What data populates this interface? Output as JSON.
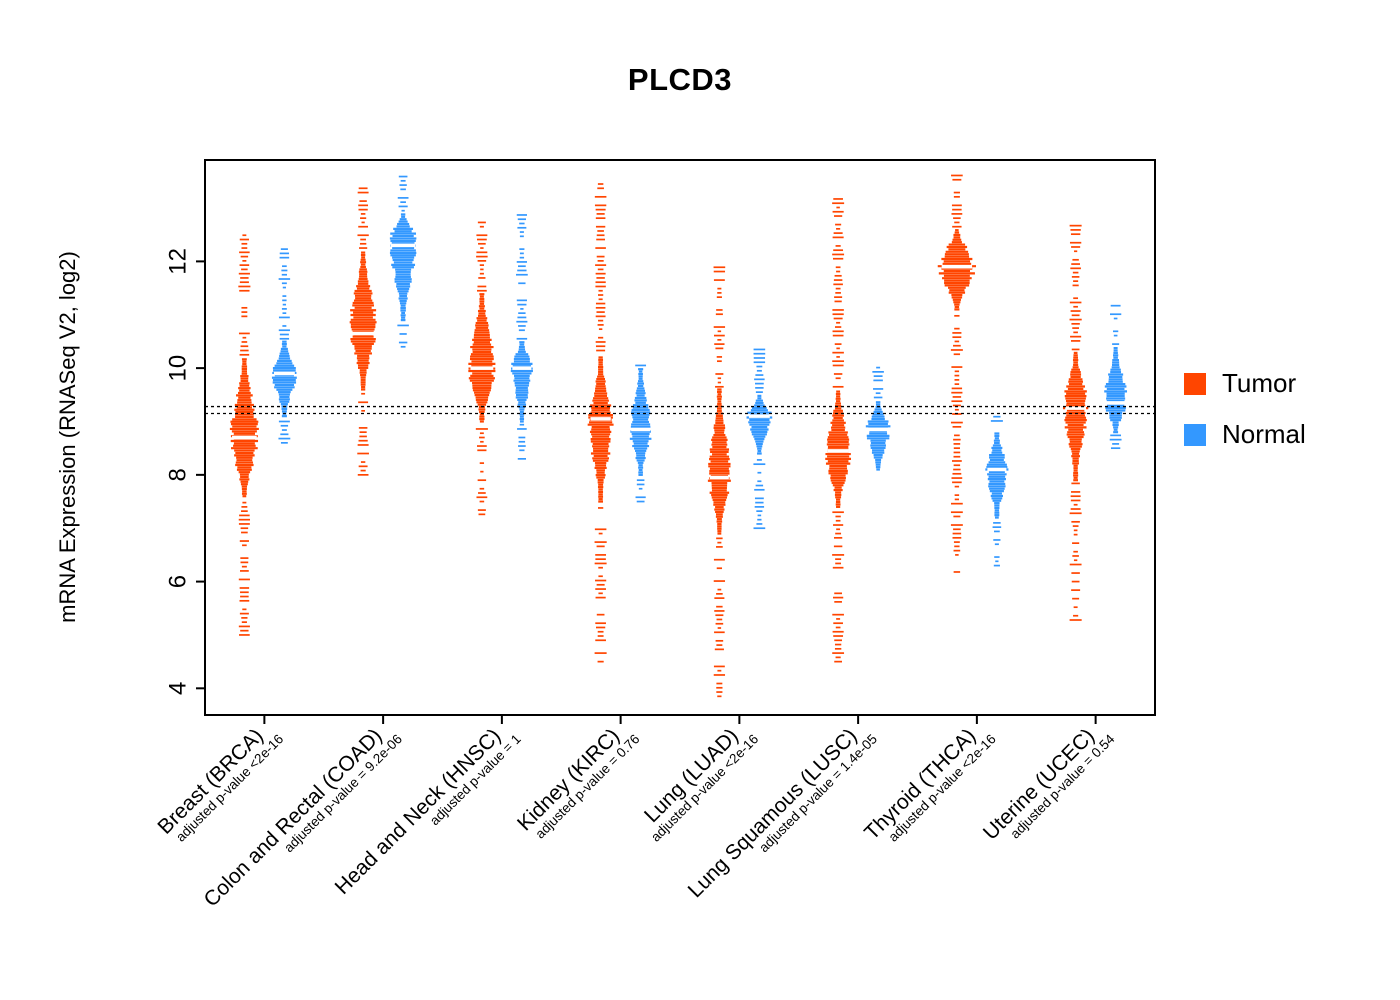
{
  "chart_data": {
    "type": "violin",
    "title": "PLCD3",
    "ylabel": "mRNA Expression (RNASeq V2, log2)",
    "y_ticks": [
      4,
      6,
      8,
      10,
      12
    ],
    "ylim": [
      3.5,
      13.9
    ],
    "reference_lines": [
      9.15,
      9.28
    ],
    "grid": false,
    "legend_position": "right",
    "legend": {
      "tumor_label": "Tumor",
      "normal_label": "Normal"
    },
    "colors": {
      "tumor": "#FF4500",
      "normal": "#3398FF",
      "median": "#FFFFFF",
      "axis": "#000000"
    },
    "groups": [
      {
        "name": "Breast (BRCA)",
        "pvalue": "adjusted p-value <2e-16",
        "tumor": {
          "median": 8.7,
          "mode": 8.7,
          "body": [
            7.6,
            10.2
          ],
          "range": [
            5.0,
            12.5
          ],
          "max_width": 13
        },
        "normal": {
          "median": 9.9,
          "mode": 9.9,
          "body": [
            9.1,
            10.5
          ],
          "range": [
            8.6,
            12.3
          ],
          "max_width": 11
        }
      },
      {
        "name": "Colon and Rectal (COAD)",
        "pvalue": "adjusted p-value = 9.2e-06",
        "tumor": {
          "median": 10.65,
          "mode": 10.8,
          "body": [
            9.6,
            12.2
          ],
          "range": [
            8.0,
            13.4
          ],
          "max_width": 12
        },
        "normal": {
          "median": 12.3,
          "mode": 12.4,
          "body": [
            10.9,
            12.9
          ],
          "range": [
            10.4,
            13.6
          ],
          "max_width": 13
        }
      },
      {
        "name": "Head and Neck (HNSC)",
        "pvalue": "adjusted p-value = 1",
        "tumor": {
          "median": 10.0,
          "mode": 10.0,
          "body": [
            9.0,
            11.4
          ],
          "range": [
            7.1,
            12.9
          ],
          "max_width": 12
        },
        "normal": {
          "median": 10.0,
          "mode": 10.0,
          "body": [
            9.0,
            10.5
          ],
          "range": [
            8.3,
            12.9
          ],
          "max_width": 10
        }
      },
      {
        "name": "Kidney (KIRC)",
        "pvalue": "adjusted p-value = 0.76",
        "tumor": {
          "median": 9.05,
          "mode": 8.9,
          "body": [
            7.5,
            10.2
          ],
          "range": [
            4.5,
            13.5
          ],
          "max_width": 11
        },
        "normal": {
          "median": 8.85,
          "mode": 8.8,
          "body": [
            8.0,
            10.0
          ],
          "range": [
            7.5,
            10.1
          ],
          "max_width": 10
        }
      },
      {
        "name": "Lung (LUAD)",
        "pvalue": "adjusted p-value <2e-16",
        "tumor": {
          "median": 7.95,
          "mode": 8.0,
          "body": [
            6.9,
            9.6
          ],
          "range": [
            3.85,
            12.05
          ],
          "max_width": 10
        },
        "normal": {
          "median": 9.1,
          "mode": 9.1,
          "body": [
            8.4,
            9.5
          ],
          "range": [
            7.0,
            10.35
          ],
          "max_width": 11
        }
      },
      {
        "name": "Lung Squamous (LUSC)",
        "pvalue": "adjusted p-value = 1.4e-05",
        "tumor": {
          "median": 8.45,
          "mode": 8.4,
          "body": [
            7.4,
            9.6
          ],
          "range": [
            4.5,
            13.3
          ],
          "max_width": 11
        },
        "normal": {
          "median": 8.85,
          "mode": 8.85,
          "body": [
            8.1,
            9.4
          ],
          "range": [
            7.6,
            10.1
          ],
          "max_width": 11
        }
      },
      {
        "name": "Thyroid (THCA)",
        "pvalue": "adjusted p-value <2e-16",
        "tumor": {
          "median": 11.9,
          "mode": 11.9,
          "body": [
            11.1,
            12.6
          ],
          "range": [
            6.1,
            13.75
          ],
          "max_width": 16
        },
        "normal": {
          "median": 8.1,
          "mode": 8.1,
          "body": [
            7.2,
            8.8
          ],
          "range": [
            6.3,
            9.2
          ],
          "max_width": 10
        }
      },
      {
        "name": "Uterine (UCEC)",
        "pvalue": "adjusted p-value = 0.54",
        "tumor": {
          "median": 9.25,
          "mode": 9.3,
          "body": [
            7.9,
            10.3
          ],
          "range": [
            5.2,
            12.7
          ],
          "max_width": 11
        },
        "normal": {
          "median": 9.35,
          "mode": 9.4,
          "body": [
            8.8,
            10.4
          ],
          "range": [
            8.5,
            11.3
          ],
          "max_width": 11
        }
      }
    ]
  }
}
